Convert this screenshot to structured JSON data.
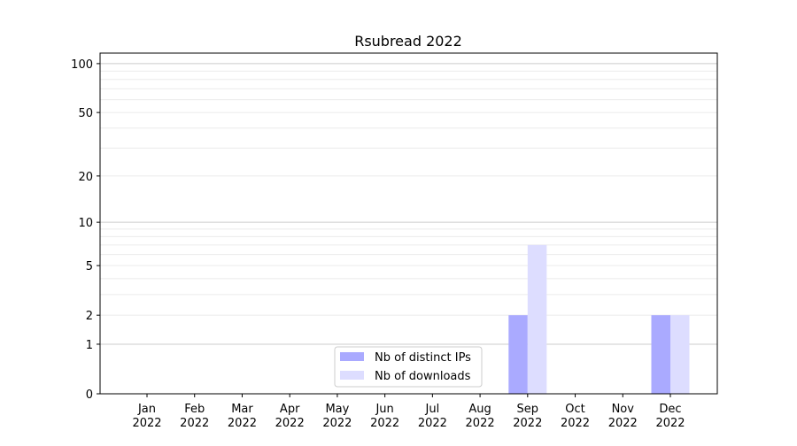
{
  "chart_data": {
    "type": "bar",
    "title": "Rsubread 2022",
    "xlabel": "",
    "ylabel": "",
    "categories": [
      "Jan\n2022",
      "Feb\n2022",
      "Mar\n2022",
      "Apr\n2022",
      "May\n2022",
      "Jun\n2022",
      "Jul\n2022",
      "Aug\n2022",
      "Sep\n2022",
      "Oct\n2022",
      "Nov\n2022",
      "Dec\n2022"
    ],
    "series": [
      {
        "name": "Nb of distinct IPs",
        "color": "#aaaaff",
        "values": [
          0,
          0,
          0,
          0,
          0,
          0,
          0,
          0,
          2,
          0,
          0,
          2
        ]
      },
      {
        "name": "Nb of downloads",
        "color": "#ddddff",
        "values": [
          0,
          0,
          0,
          0,
          0,
          0,
          0,
          0,
          7,
          0,
          0,
          2
        ]
      }
    ],
    "yscale": "log(y+1)",
    "yticks": [
      0,
      1,
      2,
      5,
      10,
      20,
      50,
      100
    ],
    "ylim": [
      0,
      116
    ],
    "grid": true,
    "legend": "bottom-center"
  }
}
